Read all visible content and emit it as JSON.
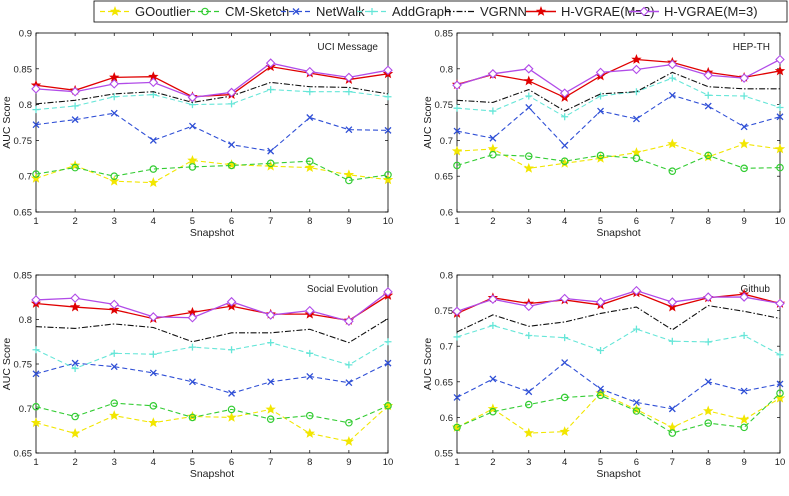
{
  "legend": [
    {
      "name": "GOoutlier",
      "color": "#f2e600",
      "style": "dashed",
      "marker": "star"
    },
    {
      "name": "CM-Sketch",
      "color": "#33cc33",
      "style": "dashed",
      "marker": "circle"
    },
    {
      "name": "NetWalk",
      "color": "#2f4fd6",
      "style": "dashed",
      "marker": "x"
    },
    {
      "name": "AddGraph",
      "color": "#66e6d8",
      "style": "dashed",
      "marker": "plus"
    },
    {
      "name": "VGRNN",
      "color": "#111111",
      "style": "dashdot",
      "marker": "none"
    },
    {
      "name": "H-VGRAE(M=2)",
      "color": "#e00000",
      "style": "solid",
      "marker": "star"
    },
    {
      "name": "H-VGRAE(M=3)",
      "color": "#b14be8",
      "style": "solid",
      "marker": "diamond"
    }
  ],
  "chart_data": [
    {
      "type": "line",
      "title": "UCI Message",
      "xlabel": "Snapshot",
      "ylabel": "AUC Score",
      "x": [
        1,
        2,
        3,
        4,
        5,
        6,
        7,
        8,
        9,
        10
      ],
      "xticks": [
        "1",
        "2",
        "3",
        "4",
        "5",
        "6",
        "7",
        "8",
        "9",
        "10"
      ],
      "ylim": [
        0.65,
        0.9
      ],
      "yticks": [
        "0.65",
        "0.7",
        "0.75",
        "0.8",
        "0.85",
        "0.9"
      ],
      "series": [
        {
          "name": "GOoutlier",
          "values": [
            0.697,
            0.715,
            0.693,
            0.691,
            0.722,
            0.716,
            0.714,
            0.712,
            0.702,
            0.695
          ]
        },
        {
          "name": "CM-Sketch",
          "values": [
            0.703,
            0.712,
            0.7,
            0.71,
            0.713,
            0.715,
            0.718,
            0.721,
            0.694,
            0.702
          ]
        },
        {
          "name": "NetWalk",
          "values": [
            0.772,
            0.779,
            0.788,
            0.75,
            0.77,
            0.744,
            0.735,
            0.782,
            0.765,
            0.764
          ]
        },
        {
          "name": "AddGraph",
          "values": [
            0.793,
            0.798,
            0.811,
            0.814,
            0.8,
            0.801,
            0.821,
            0.818,
            0.818,
            0.811
          ]
        },
        {
          "name": "VGRNN",
          "values": [
            0.801,
            0.806,
            0.815,
            0.818,
            0.803,
            0.812,
            0.831,
            0.825,
            0.824,
            0.815
          ]
        },
        {
          "name": "H-VGRAE(M=2)",
          "values": [
            0.827,
            0.82,
            0.838,
            0.839,
            0.811,
            0.814,
            0.853,
            0.844,
            0.835,
            0.843
          ]
        },
        {
          "name": "H-VGRAE(M=3)",
          "values": [
            0.822,
            0.818,
            0.829,
            0.831,
            0.81,
            0.817,
            0.858,
            0.846,
            0.838,
            0.848
          ]
        }
      ]
    },
    {
      "type": "line",
      "title": "HEP-TH",
      "xlabel": "Snapshot",
      "ylabel": "AUC Score",
      "x": [
        1,
        2,
        3,
        4,
        5,
        6,
        7,
        8,
        9,
        10
      ],
      "xticks": [
        "1",
        "2",
        "3",
        "4",
        "5",
        "6",
        "7",
        "8",
        "9",
        "10"
      ],
      "ylim": [
        0.6,
        0.85
      ],
      "yticks": [
        "0.6",
        "0.65",
        "0.7",
        "0.75",
        "0.8",
        "0.85"
      ],
      "series": [
        {
          "name": "GOoutlier",
          "values": [
            0.685,
            0.688,
            0.661,
            0.668,
            0.675,
            0.683,
            0.695,
            0.677,
            0.695,
            0.688
          ]
        },
        {
          "name": "CM-Sketch",
          "values": [
            0.665,
            0.68,
            0.678,
            0.671,
            0.679,
            0.675,
            0.657,
            0.679,
            0.661,
            0.662
          ]
        },
        {
          "name": "NetWalk",
          "values": [
            0.713,
            0.703,
            0.746,
            0.693,
            0.741,
            0.73,
            0.763,
            0.748,
            0.719,
            0.733
          ]
        },
        {
          "name": "AddGraph",
          "values": [
            0.745,
            0.741,
            0.762,
            0.733,
            0.762,
            0.768,
            0.787,
            0.763,
            0.762,
            0.746
          ]
        },
        {
          "name": "VGRNN",
          "values": [
            0.756,
            0.753,
            0.771,
            0.741,
            0.765,
            0.768,
            0.795,
            0.775,
            0.772,
            0.772
          ]
        },
        {
          "name": "H-VGRAE(M=2)",
          "values": [
            0.778,
            0.792,
            0.783,
            0.76,
            0.79,
            0.813,
            0.809,
            0.795,
            0.788,
            0.797
          ]
        },
        {
          "name": "H-VGRAE(M=3)",
          "values": [
            0.777,
            0.793,
            0.8,
            0.766,
            0.795,
            0.799,
            0.806,
            0.791,
            0.787,
            0.813
          ]
        }
      ]
    },
    {
      "type": "line",
      "title": "Social Evolution",
      "xlabel": "Snapshot",
      "ylabel": "AUC Score",
      "x": [
        1,
        2,
        3,
        4,
        5,
        6,
        7,
        8,
        9,
        10
      ],
      "xticks": [
        "1",
        "2",
        "3",
        "4",
        "5",
        "6",
        "7",
        "8",
        "9",
        "10"
      ],
      "ylim": [
        0.65,
        0.85
      ],
      "yticks": [
        "0.65",
        "0.7",
        "0.75",
        "0.8",
        "0.85"
      ],
      "series": [
        {
          "name": "GOoutlier",
          "values": [
            0.684,
            0.672,
            0.692,
            0.684,
            0.691,
            0.69,
            0.699,
            0.672,
            0.663,
            0.703
          ]
        },
        {
          "name": "CM-Sketch",
          "values": [
            0.702,
            0.691,
            0.706,
            0.703,
            0.69,
            0.699,
            0.688,
            0.692,
            0.684,
            0.703
          ]
        },
        {
          "name": "NetWalk",
          "values": [
            0.739,
            0.751,
            0.747,
            0.74,
            0.73,
            0.717,
            0.73,
            0.736,
            0.729,
            0.751
          ]
        },
        {
          "name": "AddGraph",
          "values": [
            0.766,
            0.745,
            0.762,
            0.761,
            0.769,
            0.766,
            0.774,
            0.762,
            0.749,
            0.775
          ]
        },
        {
          "name": "VGRNN",
          "values": [
            0.792,
            0.79,
            0.795,
            0.791,
            0.775,
            0.785,
            0.785,
            0.789,
            0.774,
            0.801
          ]
        },
        {
          "name": "H-VGRAE(M=2)",
          "values": [
            0.818,
            0.814,
            0.811,
            0.801,
            0.808,
            0.815,
            0.806,
            0.806,
            0.799,
            0.827
          ]
        },
        {
          "name": "H-VGRAE(M=3)",
          "values": [
            0.822,
            0.824,
            0.817,
            0.803,
            0.802,
            0.82,
            0.805,
            0.81,
            0.798,
            0.831
          ]
        }
      ]
    },
    {
      "type": "line",
      "title": "Github",
      "xlabel": "Snapshot",
      "ylabel": "AUC Score",
      "x": [
        1,
        2,
        3,
        4,
        5,
        6,
        7,
        8,
        9,
        10
      ],
      "xticks": [
        "1",
        "2",
        "3",
        "4",
        "5",
        "6",
        "7",
        "8",
        "9",
        "10"
      ],
      "ylim": [
        0.55,
        0.8
      ],
      "yticks": [
        "0.55",
        "0.6",
        "0.65",
        "0.7",
        "0.75",
        "0.8"
      ],
      "series": [
        {
          "name": "GOoutlier",
          "values": [
            0.586,
            0.612,
            0.578,
            0.58,
            0.634,
            0.611,
            0.586,
            0.609,
            0.597,
            0.627
          ]
        },
        {
          "name": "CM-Sketch",
          "values": [
            0.586,
            0.608,
            0.618,
            0.628,
            0.631,
            0.609,
            0.578,
            0.592,
            0.586,
            0.634
          ]
        },
        {
          "name": "NetWalk",
          "values": [
            0.628,
            0.654,
            0.636,
            0.677,
            0.64,
            0.621,
            0.612,
            0.65,
            0.637,
            0.647
          ]
        },
        {
          "name": "AddGraph",
          "values": [
            0.713,
            0.729,
            0.715,
            0.712,
            0.694,
            0.724,
            0.707,
            0.706,
            0.715,
            0.688
          ]
        },
        {
          "name": "VGRNN",
          "values": [
            0.72,
            0.744,
            0.728,
            0.734,
            0.746,
            0.755,
            0.723,
            0.757,
            0.749,
            0.739
          ]
        },
        {
          "name": "H-VGRAE(M=2)",
          "values": [
            0.746,
            0.768,
            0.76,
            0.765,
            0.758,
            0.775,
            0.755,
            0.768,
            0.773,
            0.76
          ]
        },
        {
          "name": "H-VGRAE(M=3)",
          "values": [
            0.749,
            0.766,
            0.756,
            0.767,
            0.762,
            0.778,
            0.762,
            0.769,
            0.769,
            0.76
          ]
        }
      ]
    }
  ]
}
